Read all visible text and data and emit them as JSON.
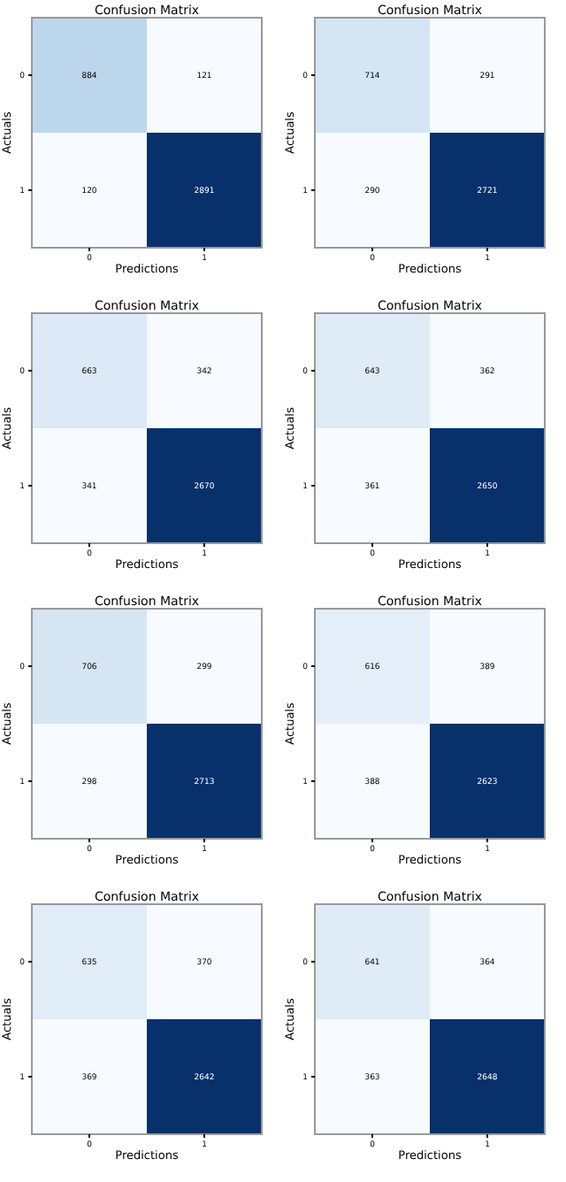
{
  "chart_data": [
    {
      "type": "heatmap",
      "title": "Confusion Matrix",
      "xlabel": "Predictions",
      "ylabel": "Actuals",
      "categories": [
        "0",
        "1"
      ],
      "y_categories": [
        "0",
        "1"
      ],
      "cells": [
        [
          884,
          121
        ],
        [
          120,
          2891
        ]
      ],
      "data_labels": true
    },
    {
      "type": "heatmap",
      "title": "Confusion Matrix",
      "xlabel": "Predictions",
      "ylabel": "Actuals",
      "categories": [
        "0",
        "1"
      ],
      "y_categories": [
        "0",
        "1"
      ],
      "cells": [
        [
          714,
          291
        ],
        [
          290,
          2721
        ]
      ],
      "data_labels": true
    },
    {
      "type": "heatmap",
      "title": "Confusion Matrix",
      "xlabel": "Predictions",
      "ylabel": "Actuals",
      "categories": [
        "0",
        "1"
      ],
      "y_categories": [
        "0",
        "1"
      ],
      "cells": [
        [
          663,
          342
        ],
        [
          341,
          2670
        ]
      ],
      "data_labels": true
    },
    {
      "type": "heatmap",
      "title": "Confusion Matrix",
      "xlabel": "Predictions",
      "ylabel": "Actuals",
      "categories": [
        "0",
        "1"
      ],
      "y_categories": [
        "0",
        "1"
      ],
      "cells": [
        [
          643,
          362
        ],
        [
          361,
          2650
        ]
      ],
      "data_labels": true
    },
    {
      "type": "heatmap",
      "title": "Confusion Matrix",
      "xlabel": "Predictions",
      "ylabel": "Actuals",
      "categories": [
        "0",
        "1"
      ],
      "y_categories": [
        "0",
        "1"
      ],
      "cells": [
        [
          706,
          299
        ],
        [
          298,
          2713
        ]
      ],
      "data_labels": true
    },
    {
      "type": "heatmap",
      "title": "Confusion Matrix",
      "xlabel": "Predictions",
      "ylabel": "Actuals",
      "categories": [
        "0",
        "1"
      ],
      "y_categories": [
        "0",
        "1"
      ],
      "cells": [
        [
          616,
          389
        ],
        [
          388,
          2623
        ]
      ],
      "data_labels": true
    },
    {
      "type": "heatmap",
      "title": "Confusion Matrix",
      "xlabel": "Predictions",
      "ylabel": "Actuals",
      "categories": [
        "0",
        "1"
      ],
      "y_categories": [
        "0",
        "1"
      ],
      "cells": [
        [
          635,
          370
        ],
        [
          369,
          2642
        ]
      ],
      "data_labels": true
    },
    {
      "type": "heatmap",
      "title": "Confusion Matrix",
      "xlabel": "Predictions",
      "ylabel": "Actuals",
      "categories": [
        "0",
        "1"
      ],
      "y_categories": [
        "0",
        "1"
      ],
      "cells": [
        [
          641,
          364
        ],
        [
          363,
          2648
        ]
      ],
      "data_labels": true
    }
  ]
}
